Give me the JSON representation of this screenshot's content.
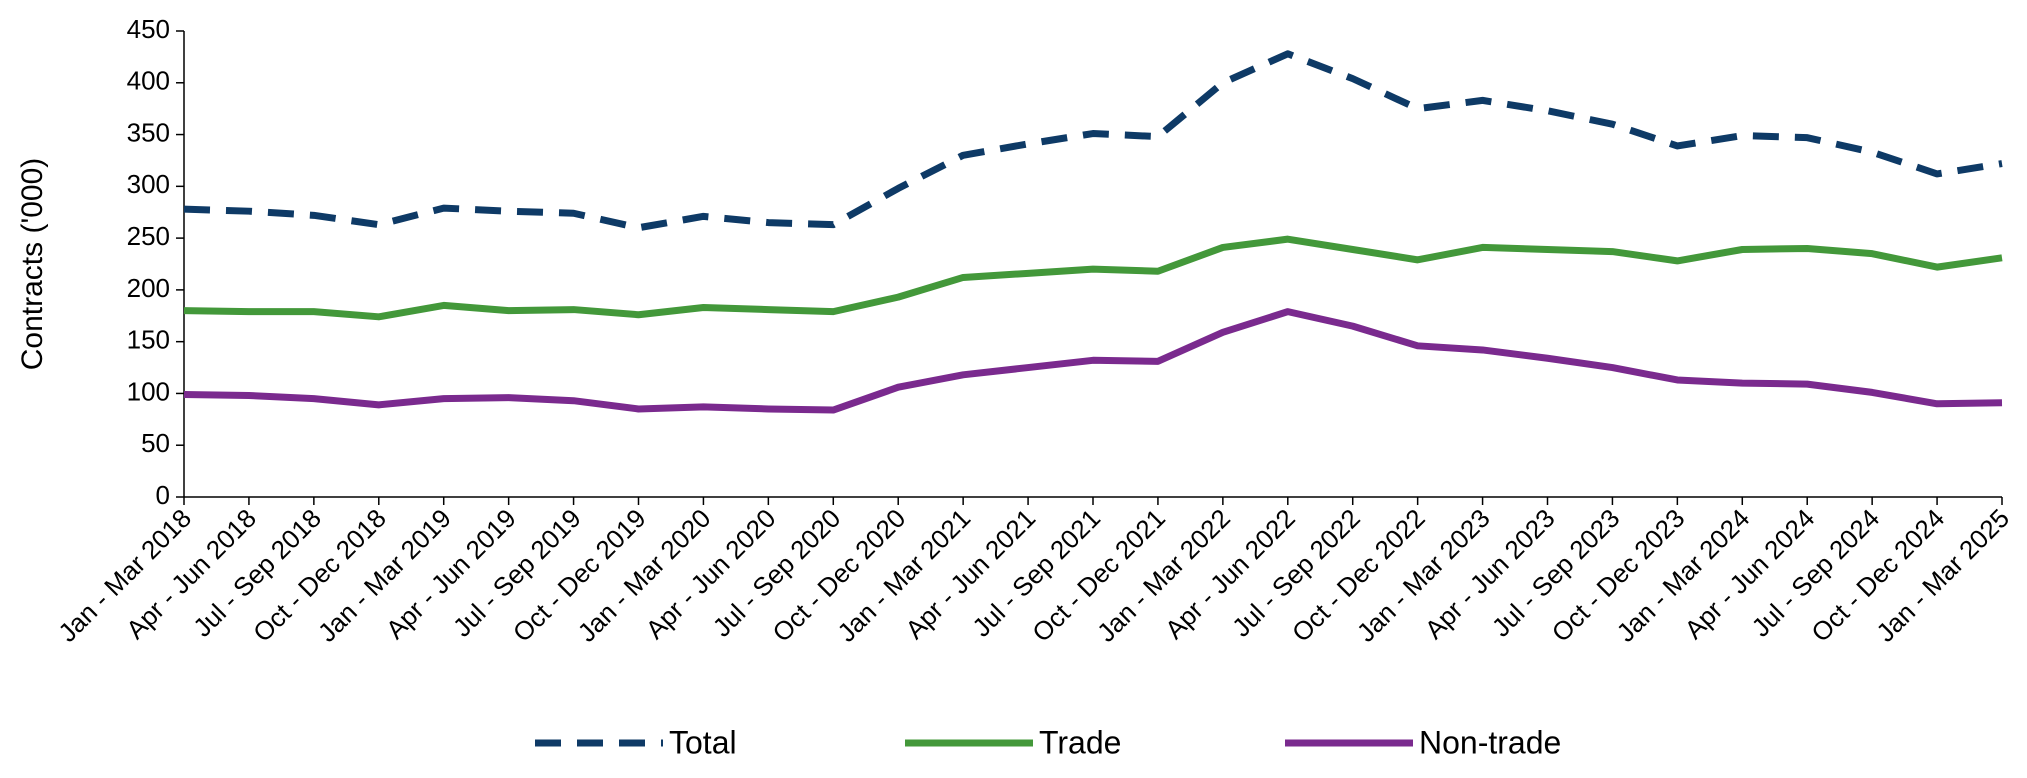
{
  "chart_data": {
    "type": "line",
    "y_label": "Contracts ('000)",
    "categories": [
      "Jan - Mar 2018",
      "Apr - Jun 2018",
      "Jul - Sep 2018",
      "Oct - Dec 2018",
      "Jan - Mar 2019",
      "Apr - Jun 2019",
      "Jul - Sep 2019",
      "Oct - Dec 2019",
      "Jan - Mar 2020",
      "Apr - Jun 2020",
      "Jul - Sep 2020",
      "Oct - Dec 2020",
      "Jan - Mar 2021",
      "Apr - Jun 2021",
      "Jul - Sep 2021",
      "Oct - Dec 2021",
      "Jan - Mar 2022",
      "Apr - Jun 2022",
      "Jul - Sep 2022",
      "Oct - Dec 2022",
      "Jan - Mar 2023",
      "Apr - Jun 2023",
      "Jul - Sep 2023",
      "Oct - Dec 2023",
      "Jan - Mar 2024",
      "Apr - Jun 2024",
      "Jul - Sep 2024",
      "Oct - Dec 2024",
      "Jan - Mar 2025"
    ],
    "series": [
      {
        "name": "Total",
        "color": "#0e3a66",
        "line_style": "dashed",
        "values": [
          278,
          276,
          272,
          263,
          279,
          276,
          274,
          260,
          271,
          265,
          263,
          298,
          330,
          341,
          351,
          348,
          400,
          428,
          404,
          375,
          383,
          373,
          360,
          339,
          349,
          347,
          333,
          312,
          322
        ]
      },
      {
        "name": "Trade",
        "color": "#43983a",
        "line_style": "solid",
        "values": [
          180,
          179,
          179,
          174,
          185,
          180,
          181,
          176,
          183,
          181,
          179,
          193,
          212,
          216,
          220,
          218,
          241,
          249,
          239,
          229,
          241,
          239,
          237,
          228,
          239,
          240,
          235,
          222,
          231
        ]
      },
      {
        "name": "Non-trade",
        "color": "#7a2a8e",
        "line_style": "solid",
        "values": [
          99,
          98,
          95,
          89,
          95,
          96,
          93,
          85,
          87,
          85,
          84,
          106,
          118,
          125,
          132,
          131,
          159,
          179,
          165,
          146,
          142,
          134,
          125,
          113,
          110,
          109,
          101,
          90,
          91
        ]
      }
    ],
    "ylim": [
      0,
      450
    ],
    "yticks": [
      0,
      50,
      100,
      150,
      200,
      250,
      300,
      350,
      400,
      450
    ],
    "grid": false,
    "legend": "bottom"
  }
}
